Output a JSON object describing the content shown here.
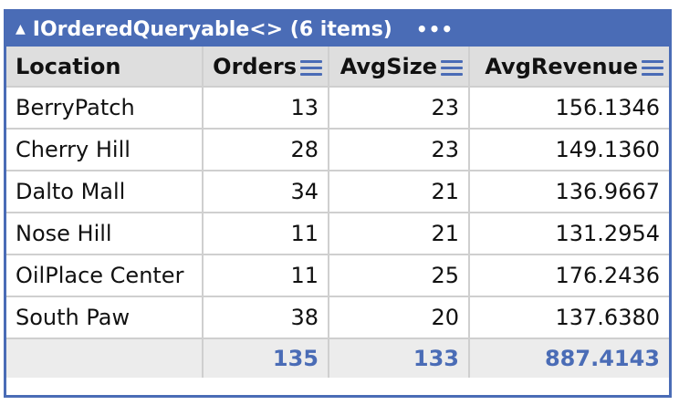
{
  "window": {
    "title": "IOrderedQueryable<> (6 items)",
    "more": "•••"
  },
  "table": {
    "headers": [
      "Location",
      "Orders",
      "AvgSize",
      "AvgRevenue"
    ],
    "rows": [
      [
        "BerryPatch",
        "13",
        "23",
        "156.1346"
      ],
      [
        "Cherry Hill",
        "28",
        "23",
        "149.1360"
      ],
      [
        "Dalto Mall",
        "34",
        "21",
        "136.9667"
      ],
      [
        "Nose Hill",
        "11",
        "21",
        "131.2954"
      ],
      [
        "OilPlace Center",
        "11",
        "25",
        "176.2436"
      ],
      [
        "South Paw",
        "38",
        "20",
        "137.6380"
      ]
    ],
    "totals": [
      "",
      "135",
      "133",
      "887.4143"
    ]
  },
  "colors": {
    "accent": "#4a6cb6",
    "header_bg": "#dedede",
    "totals_bg": "#ececec"
  }
}
